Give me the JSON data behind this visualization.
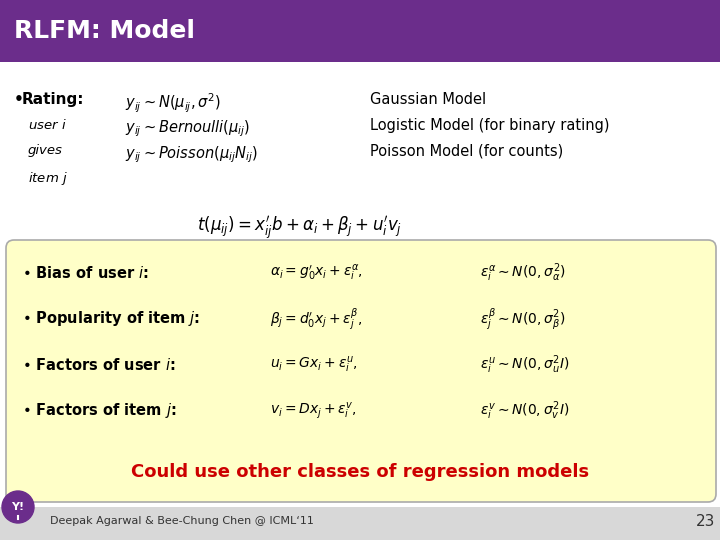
{
  "title": "RLFM: Model",
  "title_bg": "#6B2D8B",
  "title_color": "#FFFFFF",
  "slide_bg": "#EBEBEB",
  "box_bg": "#FFFFC8",
  "box_border": "#AAAAAA",
  "footer_text": "Deepak Agarwal & Bee-Chung Chen @ ICML‘11",
  "footer_page": "23",
  "yahoo_color": "#6B2D8B",
  "highlight_color": "#CC0000",
  "rating_label": "• Rating:",
  "rating_sub1": "user $i$",
  "rating_sub2": "gives",
  "rating_sub3": "item $j$",
  "formula1": "$y_{ij} \\sim N(\\mu_{ij},\\sigma^2)$",
  "formula2": "$y_{ij} \\sim Bernoulli(\\mu_{ij})$",
  "formula3": "$y_{ij} \\sim Poisson(\\mu_{ij}N_{ij})$",
  "label1": "Gaussian Model",
  "label2": "Logistic Model (for binary rating)",
  "label3": "Poisson Model (for counts)",
  "main_formula": "$t(\\mu_{ij}) = x_{ij}^{\\prime}b + \\alpha_i + \\beta_j+u_i^{\\prime}v_j$",
  "box_items": [
    {
      "label": "• Bias of user $\\mathit{i}$:",
      "formula1": "$\\alpha_i = g_0^{\\prime}x_i + \\varepsilon_i^{\\alpha},$",
      "formula2": "$\\varepsilon_i^{\\alpha} \\sim N(0, \\sigma_{\\alpha}^2)$"
    },
    {
      "label": "• Popularity of item $\\mathit{j}$:",
      "formula1": "$\\beta_j = d_0^{\\prime}x_j + \\varepsilon_j^{\\beta},$",
      "formula2": "$\\varepsilon_j^{\\beta} \\sim N(0, \\sigma_{\\beta}^2)$"
    },
    {
      "label": "• Factors of user $\\mathit{i}$:",
      "formula1": "$u_i = Gx_i + \\varepsilon_i^{u},$",
      "formula2": "$\\varepsilon_i^{u} \\sim N(0, \\sigma_u^2 I)$"
    },
    {
      "label": "• Factors of item $\\mathit{j}$:",
      "formula1": "$v_i = Dx_j + \\varepsilon_i^{v},$",
      "formula2": "$\\varepsilon_i^{v} \\sim N(0, \\sigma_v^2 I)$"
    }
  ],
  "could_text": "Could use other classes of regression models"
}
